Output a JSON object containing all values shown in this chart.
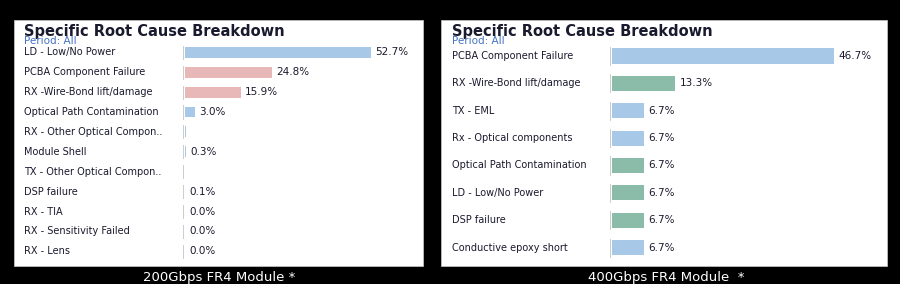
{
  "chart1": {
    "title": "Specific Root Cause Breakdown",
    "subtitle": "Period: All",
    "caption": "200Gbps FR4 Module *",
    "categories": [
      "LD - Low/No Power",
      "PCBA Component Failure",
      "RX -Wire-Bond lift/damage",
      "Optical Path Contamination",
      "RX - Other Optical Compon..",
      "Module Shell",
      "TX - Other Optical Compon..",
      "DSP failure",
      "RX - TIA",
      "RX - Sensitivity Failed",
      "RX - Lens"
    ],
    "values": [
      52.7,
      24.8,
      15.9,
      3.0,
      0.5,
      0.3,
      0.2,
      0.1,
      0.0,
      0.0,
      0.0
    ],
    "labels": [
      "52.7%",
      "24.8%",
      "15.9%",
      "3.0%",
      "",
      "0.3%",
      "",
      "0.1%",
      "0.0%",
      "0.0%",
      "0.0%"
    ],
    "colors": [
      "#a8c8e8",
      "#e8b8b8",
      "#e8b8b8",
      "#a8c8e8",
      "#a8c8e8",
      "#a8c8e8",
      "#a8c8e8",
      "#a8c8e8",
      "#a8c8e8",
      "#a8c8e8",
      "#a8c8e8"
    ]
  },
  "chart2": {
    "title": "Specific Root Cause Breakdown",
    "subtitle": "Period: All",
    "caption": "400Gbps FR4 Module  *",
    "categories": [
      "PCBA Component Failure",
      "RX -Wire-Bond lift/damage",
      "TX - EML",
      "Rx - Optical components",
      "Optical Path Contamination",
      "LD - Low/No Power",
      "DSP failure",
      "Conductive epoxy short"
    ],
    "values": [
      46.7,
      13.3,
      6.7,
      6.7,
      6.7,
      6.7,
      6.7,
      6.7
    ],
    "labels": [
      "46.7%",
      "13.3%",
      "6.7%",
      "6.7%",
      "6.7%",
      "6.7%",
      "6.7%",
      "6.7%"
    ],
    "colors": [
      "#a8c8e8",
      "#8bbcaa",
      "#a8c8e8",
      "#a8c8e8",
      "#8bbcaa",
      "#8bbcaa",
      "#8bbcaa",
      "#a8c8e8"
    ]
  },
  "bg_color": "#000000",
  "panel_bg": "#ffffff",
  "title_color": "#1a1a2e",
  "subtitle_color": "#4472c4",
  "caption_color": "#ffffff",
  "title_fontsize": 10.5,
  "subtitle_fontsize": 7.5,
  "label_fontsize": 7.0,
  "caption_fontsize": 9.5,
  "bar_label_fontsize": 7.5
}
